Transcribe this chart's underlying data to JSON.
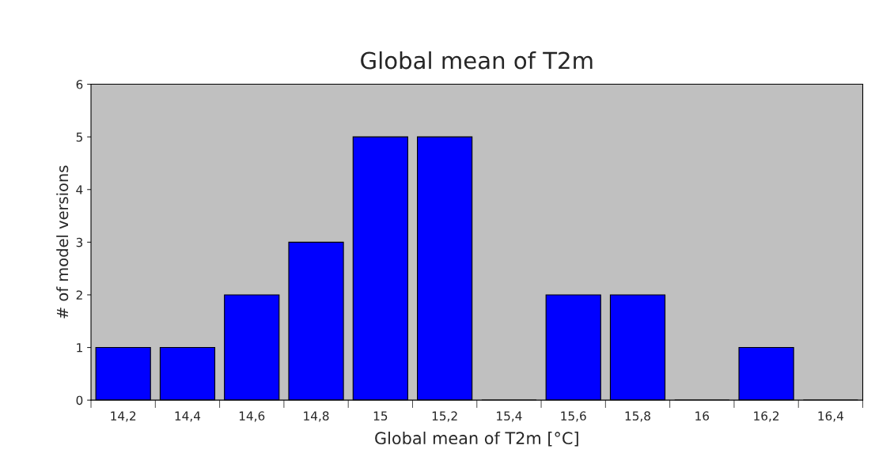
{
  "chart_data": {
    "type": "bar",
    "title": "Global mean of T2m",
    "xlabel": "Global mean of T2m [°C]",
    "ylabel": "# of model versions",
    "categories": [
      "14,2",
      "14,4",
      "14,6",
      "14,8",
      "15",
      "15,2",
      "15,4",
      "15,6",
      "15,8",
      "16",
      "16,2",
      "16,4"
    ],
    "values": [
      1,
      1,
      2,
      3,
      5,
      5,
      0,
      2,
      2,
      0,
      1,
      0
    ],
    "color": "#0000ff",
    "ylim": [
      0,
      6
    ],
    "yticks": [
      0,
      1,
      2,
      3,
      4,
      5,
      6
    ],
    "grid": false,
    "legend": false
  }
}
